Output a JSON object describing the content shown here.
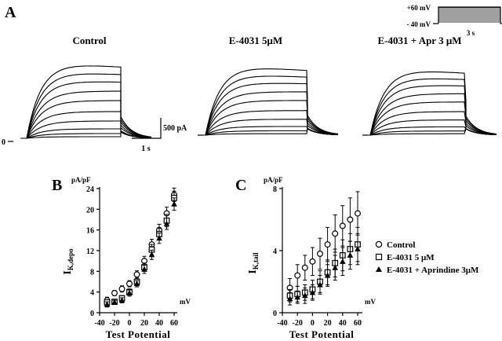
{
  "panel_labels": {
    "a": "A",
    "b": "B",
    "c": "C"
  },
  "protocol": {
    "top_voltage": "+60 mV",
    "holding_voltage": "- 40 mV",
    "duration": "3 s"
  },
  "conditions": [
    "Control",
    "E-4031 5μM",
    "E-4031 + Apr 3 μM"
  ],
  "scale_bar": {
    "current": "500 pA",
    "time": "1 s"
  },
  "zero_label": "0",
  "colors": {
    "ink": "#000000",
    "background": "#ffffff"
  },
  "chart_data": [
    {
      "type": "scatter",
      "panel": "B",
      "ylabel_unit": "pA/pF",
      "ylabel_main": "I",
      "ylabel_sub": "K,depo",
      "xlabel": "Test Potential",
      "xunit": "mV",
      "xlim": [
        -40,
        60
      ],
      "ylim": [
        0,
        24
      ],
      "xticks": [
        -40,
        -20,
        0,
        20,
        40,
        60
      ],
      "yticks": [
        0,
        4,
        8,
        12,
        16,
        20,
        24
      ],
      "x": [
        -30,
        -20,
        -10,
        0,
        10,
        20,
        30,
        40,
        50,
        60
      ],
      "series": [
        {
          "marker": "open-circle",
          "values": [
            2.4,
            3.8,
            4.6,
            5.6,
            7.4,
            10.0,
            13.2,
            16.0,
            19.2,
            22.8
          ],
          "errors": [
            0.6,
            0.5,
            0.6,
            0.6,
            0.7,
            0.9,
            1.0,
            1.1,
            1.2,
            1.3
          ]
        },
        {
          "marker": "open-square",
          "values": [
            2.0,
            2.1,
            2.8,
            4.0,
            6.0,
            8.8,
            12.2,
            15.2,
            17.8,
            22.2
          ],
          "errors": [
            0.5,
            0.5,
            0.5,
            0.6,
            0.7,
            0.8,
            1.0,
            1.1,
            1.2,
            1.3
          ]
        },
        {
          "marker": "filled-triangle",
          "values": [
            1.6,
            2.0,
            2.4,
            3.8,
            5.6,
            8.4,
            11.2,
            14.4,
            17.2,
            21.0
          ],
          "errors": [
            0.5,
            0.4,
            0.5,
            0.6,
            0.6,
            0.8,
            0.9,
            1.0,
            1.1,
            1.2
          ]
        }
      ]
    },
    {
      "type": "scatter",
      "panel": "C",
      "ylabel_unit": "pA/pF",
      "ylabel_main": "I",
      "ylabel_sub": "K,tail",
      "xlabel": "Test Potential",
      "xunit": "mV",
      "xlim": [
        -40,
        60
      ],
      "ylim": [
        0,
        8
      ],
      "xticks": [
        -40,
        -20,
        0,
        20,
        40,
        60
      ],
      "yticks": [
        0,
        4,
        8
      ],
      "x": [
        -30,
        -20,
        -10,
        0,
        10,
        20,
        30,
        40,
        50,
        60
      ],
      "legend": [
        "Control",
        "E-4031 5 μM",
        "E-4031 + Aprindine 3μM"
      ],
      "series": [
        {
          "name": "Control",
          "marker": "open-circle",
          "values": [
            1.6,
            2.4,
            2.9,
            3.3,
            3.8,
            4.4,
            5.1,
            5.6,
            6.0,
            6.4
          ],
          "errors": [
            0.6,
            0.7,
            0.8,
            0.9,
            1.0,
            1.1,
            1.2,
            1.3,
            1.4,
            1.4
          ]
        },
        {
          "name": "E-4031 5 μM",
          "marker": "open-square",
          "values": [
            1.1,
            1.2,
            1.3,
            1.5,
            2.0,
            2.6,
            3.2,
            3.7,
            4.1,
            4.4
          ],
          "errors": [
            0.4,
            0.5,
            0.5,
            0.6,
            0.7,
            0.8,
            0.9,
            1.0,
            1.0,
            1.1
          ]
        },
        {
          "name": "E-4031 + Aprindine 3μM",
          "marker": "filled-triangle",
          "values": [
            0.9,
            1.0,
            1.1,
            1.3,
            1.8,
            2.4,
            2.9,
            3.3,
            3.7,
            4.1
          ],
          "errors": [
            0.4,
            0.4,
            0.5,
            0.5,
            0.6,
            0.7,
            0.8,
            0.9,
            0.9,
            1.0
          ]
        }
      ]
    }
  ]
}
